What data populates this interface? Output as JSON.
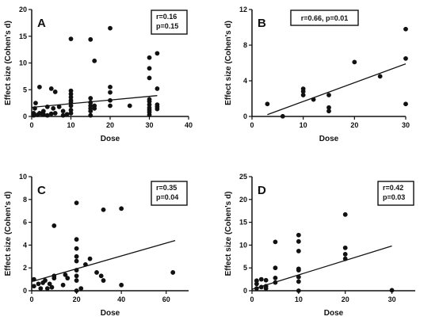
{
  "chart_data": [
    {
      "type": "scatter",
      "panel_label": "A",
      "xlabel": "Dose",
      "ylabel": "Effect size (Cohen's d)",
      "xlim": [
        0,
        40
      ],
      "ylim": [
        0,
        20
      ],
      "xticks": [
        "0",
        "10",
        "20",
        "30",
        "40"
      ],
      "yticks": [
        "0",
        "5",
        "10",
        "15",
        "20"
      ],
      "stats": [
        "r=0.16",
        "p=0.15"
      ],
      "stats_layout": "stacked",
      "regression": {
        "x": [
          0,
          32
        ],
        "y": [
          1.7,
          3.9
        ]
      },
      "points": [
        [
          0.5,
          0.2
        ],
        [
          0.5,
          0.6
        ],
        [
          0.8,
          1.5
        ],
        [
          1,
          2.5
        ],
        [
          1.5,
          0.3
        ],
        [
          2,
          0.6
        ],
        [
          2,
          5.5
        ],
        [
          2.5,
          0.5
        ],
        [
          3,
          1
        ],
        [
          3,
          0.4
        ],
        [
          4,
          0.2
        ],
        [
          4,
          1.8
        ],
        [
          5,
          0.5
        ],
        [
          5,
          5.2
        ],
        [
          5.5,
          1.5
        ],
        [
          6,
          4.6
        ],
        [
          6,
          0.6
        ],
        [
          7,
          1.8
        ],
        [
          8,
          0.2
        ],
        [
          8,
          1
        ],
        [
          9,
          0.4
        ],
        [
          10,
          0.6
        ],
        [
          10,
          1.2
        ],
        [
          10,
          2
        ],
        [
          10,
          2.6
        ],
        [
          10,
          3
        ],
        [
          10,
          3.6
        ],
        [
          10,
          4.2
        ],
        [
          10,
          4.8
        ],
        [
          10,
          14.5
        ],
        [
          15,
          0.2
        ],
        [
          15,
          1
        ],
        [
          15,
          1.5
        ],
        [
          15,
          2
        ],
        [
          15,
          2.6
        ],
        [
          15,
          3.4
        ],
        [
          15,
          14.4
        ],
        [
          16,
          1.5
        ],
        [
          16,
          2
        ],
        [
          16,
          10.4
        ],
        [
          20,
          2
        ],
        [
          20,
          3
        ],
        [
          20,
          4.5
        ],
        [
          20,
          5.5
        ],
        [
          20,
          16.5
        ],
        [
          25,
          2
        ],
        [
          30,
          0.3
        ],
        [
          30,
          0.8
        ],
        [
          30,
          1.2
        ],
        [
          30,
          1.6
        ],
        [
          30,
          2.2
        ],
        [
          30,
          2.8
        ],
        [
          30,
          3.2
        ],
        [
          30,
          7.2
        ],
        [
          30,
          9
        ],
        [
          30,
          11
        ],
        [
          32,
          1.4
        ],
        [
          32,
          1.8
        ],
        [
          32,
          2.2
        ],
        [
          32,
          5.2
        ],
        [
          32,
          11.8
        ]
      ]
    },
    {
      "type": "scatter",
      "panel_label": "B",
      "xlabel": "Dose",
      "ylabel": "Effect size (Cohen's d)",
      "xlim": [
        0,
        30
      ],
      "ylim": [
        0,
        12
      ],
      "xticks": [
        "0",
        "10",
        "20",
        "30"
      ],
      "yticks": [
        "0",
        "4",
        "8",
        "12"
      ],
      "stats": [
        "r=0.66, p=0.01"
      ],
      "stats_layout": "single",
      "regression": {
        "x": [
          3,
          30
        ],
        "y": [
          0.2,
          5.9
        ]
      },
      "points": [
        [
          3,
          1.4
        ],
        [
          6,
          0.02
        ],
        [
          10,
          2.4
        ],
        [
          10,
          2.8
        ],
        [
          10,
          3.1
        ],
        [
          12,
          1.9
        ],
        [
          15,
          0.6
        ],
        [
          15,
          1
        ],
        [
          15,
          2.4
        ],
        [
          20,
          6.1
        ],
        [
          25,
          4.5
        ],
        [
          30,
          1.4
        ],
        [
          30,
          6.5
        ],
        [
          30,
          9.8
        ]
      ]
    },
    {
      "type": "scatter",
      "panel_label": "C",
      "xlabel": "Dose",
      "ylabel": "Effect size (Cohen's d)",
      "xlim": [
        0,
        70
      ],
      "ylim": [
        0,
        10
      ],
      "xticks": [
        "0",
        "20",
        "40",
        "60"
      ],
      "yticks": [
        "0",
        "2",
        "4",
        "6",
        "8",
        "10"
      ],
      "stats": [
        "r=0.35",
        "p=0.04"
      ],
      "stats_layout": "stacked",
      "regression": {
        "x": [
          0,
          64
        ],
        "y": [
          0.8,
          4.4
        ]
      },
      "points": [
        [
          1,
          0.4
        ],
        [
          1,
          1
        ],
        [
          3,
          0.6
        ],
        [
          4,
          0.2
        ],
        [
          5,
          0.7
        ],
        [
          6,
          0.9
        ],
        [
          7,
          0.2
        ],
        [
          8,
          0.6
        ],
        [
          9,
          0.3
        ],
        [
          10,
          1.1
        ],
        [
          10,
          1.3
        ],
        [
          10,
          5.7
        ],
        [
          14,
          0.5
        ],
        [
          15,
          1.4
        ],
        [
          16,
          1.1
        ],
        [
          20,
          0
        ],
        [
          20,
          0.9
        ],
        [
          20,
          1.3
        ],
        [
          20,
          1.8
        ],
        [
          20,
          2.6
        ],
        [
          20,
          3
        ],
        [
          20,
          3.7
        ],
        [
          20,
          4.5
        ],
        [
          20,
          7.7
        ],
        [
          22,
          0.2
        ],
        [
          24,
          2.3
        ],
        [
          26,
          2.8
        ],
        [
          29,
          1.6
        ],
        [
          31,
          1.3
        ],
        [
          32,
          7.1
        ],
        [
          32,
          0.9
        ],
        [
          40,
          0.5
        ],
        [
          40,
          7.2
        ],
        [
          63,
          1.6
        ]
      ]
    },
    {
      "type": "scatter",
      "panel_label": "D",
      "xlabel": "Dose",
      "ylabel": "Effect size (Cohen's d)",
      "xlim": [
        0,
        35
      ],
      "ylim": [
        0,
        25
      ],
      "xticks": [
        "0",
        "10",
        "20",
        "30"
      ],
      "yticks": [
        "0",
        "5",
        "10",
        "15",
        "20",
        "25"
      ],
      "stats": [
        "r=0.42",
        "p=0.03"
      ],
      "stats_layout": "stacked",
      "regression": {
        "x": [
          0,
          30
        ],
        "y": [
          0.3,
          9.8
        ]
      },
      "points": [
        [
          1,
          0.5
        ],
        [
          1,
          1.5
        ],
        [
          1,
          2.2
        ],
        [
          2,
          0.8
        ],
        [
          2,
          2.5
        ],
        [
          3,
          1
        ],
        [
          3,
          0.5
        ],
        [
          3,
          2.3
        ],
        [
          5,
          1.8
        ],
        [
          5,
          2.8
        ],
        [
          5,
          5
        ],
        [
          5,
          10.7
        ],
        [
          10,
          0
        ],
        [
          10,
          2
        ],
        [
          10,
          3
        ],
        [
          10,
          4.5
        ],
        [
          10,
          4.8
        ],
        [
          10,
          8.7
        ],
        [
          10,
          10.8
        ],
        [
          10,
          12.2
        ],
        [
          20,
          7
        ],
        [
          20,
          8
        ],
        [
          20,
          9.4
        ],
        [
          20,
          16.7
        ],
        [
          30,
          0.1
        ]
      ]
    }
  ]
}
